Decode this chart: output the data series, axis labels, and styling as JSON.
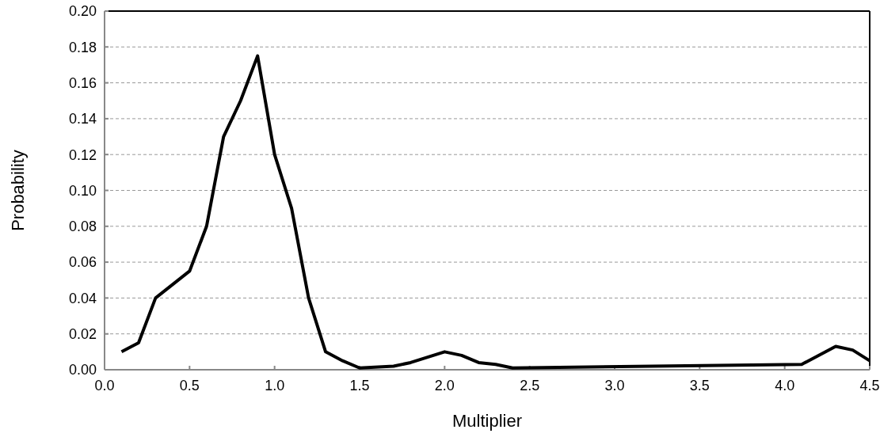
{
  "chart_data": {
    "type": "line",
    "xlabel": "Multiplier",
    "ylabel": "Probability",
    "xlim": [
      0,
      4.5
    ],
    "xticks": [
      {
        "value": 0,
        "label": "0.0"
      },
      {
        "value": 0.5,
        "label": "0.5"
      },
      {
        "value": 1,
        "label": "1.0"
      },
      {
        "value": 1.5,
        "label": "1.5"
      },
      {
        "value": 2,
        "label": "2.0"
      },
      {
        "value": 2.5,
        "label": "2.5"
      },
      {
        "value": 3,
        "label": "3.0"
      },
      {
        "value": 3.5,
        "label": "3.5"
      },
      {
        "value": 4,
        "label": "4.0"
      },
      {
        "value": 4.5,
        "label": "4.5"
      }
    ],
    "ylim": [
      0,
      0.2
    ],
    "yticks": [
      {
        "value": 0,
        "label": "0.00"
      },
      {
        "value": 0.02,
        "label": "0.02"
      },
      {
        "value": 0.04,
        "label": "0.04"
      },
      {
        "value": 0.06,
        "label": "0.06"
      },
      {
        "value": 0.08,
        "label": "0.08"
      },
      {
        "value": 0.1,
        "label": "0.10"
      },
      {
        "value": 0.12,
        "label": "0.12"
      },
      {
        "value": 0.14,
        "label": "0.14"
      },
      {
        "value": 0.16,
        "label": "0.16"
      },
      {
        "value": 0.18,
        "label": "0.18"
      },
      {
        "value": 0.2,
        "label": "0.20"
      }
    ],
    "grid": "y",
    "line_style": "solid",
    "series": [
      {
        "color": "#000000",
        "x": [
          0.1,
          0.2,
          0.3,
          0.5,
          0.6,
          0.7,
          0.8,
          0.9,
          1.0,
          1.1,
          1.2,
          1.3,
          1.4,
          1.5,
          1.7,
          1.8,
          2.0,
          2.1,
          2.2,
          2.3,
          2.4,
          4.1,
          4.3,
          4.4,
          4.5
        ],
        "values": [
          0.01,
          0.015,
          0.04,
          0.055,
          0.08,
          0.13,
          0.15,
          0.175,
          0.12,
          0.09,
          0.04,
          0.01,
          0.005,
          0.001,
          0.002,
          0.004,
          0.01,
          0.008,
          0.004,
          0.003,
          0.001,
          0.003,
          0.013,
          0.011,
          0.005
        ]
      }
    ]
  }
}
